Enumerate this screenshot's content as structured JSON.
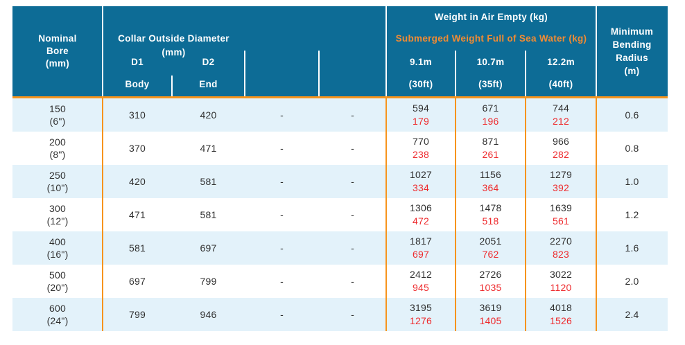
{
  "colors": {
    "header_bg": "#0d6c96",
    "accent_orange": "#f7941d",
    "orange_text": "#f18b33",
    "red_text": "#ee2b2e",
    "stripe": "#e3f2fa",
    "body_text": "#303030"
  },
  "chart_data": {
    "type": "table",
    "title": "",
    "header": {
      "nominal_bore": "Nominal\nBore\n(mm)",
      "collar_title": "Collar Outside Diameter\n(mm)",
      "d1": "D1",
      "d2": "D2",
      "d1_sub": "Body",
      "d2_sub": "End",
      "weight_air": "Weight in Air Empty (kg)",
      "weight_submerged": "Submerged Weight Full of Sea Water (kg)",
      "len1": "9.1m",
      "len1_sub": "(30ft)",
      "len2": "10.7m",
      "len2_sub": "(35ft)",
      "len3": "12.2m",
      "len3_sub": "(40ft)",
      "radius": "Minimum\nBending\nRadius\n(m)"
    },
    "rows": [
      {
        "bore": "150\n(6\")",
        "d1": "310",
        "d2": "420",
        "col4": "-",
        "col5": "-",
        "w1_air": "594",
        "w1_sub": "179",
        "w2_air": "671",
        "w2_sub": "196",
        "w3_air": "744",
        "w3_sub": "212",
        "radius": "0.6"
      },
      {
        "bore": "200\n(8\")",
        "d1": "370",
        "d2": "471",
        "col4": "-",
        "col5": "-",
        "w1_air": "770",
        "w1_sub": "238",
        "w2_air": "871",
        "w2_sub": "261",
        "w3_air": "966",
        "w3_sub": "282",
        "radius": "0.8"
      },
      {
        "bore": "250\n(10\")",
        "d1": "420",
        "d2": "581",
        "col4": "-",
        "col5": "-",
        "w1_air": "1027",
        "w1_sub": "334",
        "w2_air": "1156",
        "w2_sub": "364",
        "w3_air": "1279",
        "w3_sub": "392",
        "radius": "1.0"
      },
      {
        "bore": "300\n(12\")",
        "d1": "471",
        "d2": "581",
        "col4": "-",
        "col5": "-",
        "w1_air": "1306",
        "w1_sub": "472",
        "w2_air": "1478",
        "w2_sub": "518",
        "w3_air": "1639",
        "w3_sub": "561",
        "radius": "1.2"
      },
      {
        "bore": "400\n(16\")",
        "d1": "581",
        "d2": "697",
        "col4": "-",
        "col5": "-",
        "w1_air": "1817",
        "w1_sub": "697",
        "w2_air": "2051",
        "w2_sub": "762",
        "w3_air": "2270",
        "w3_sub": "823",
        "radius": "1.6"
      },
      {
        "bore": "500\n(20\")",
        "d1": "697",
        "d2": "799",
        "col4": "-",
        "col5": "-",
        "w1_air": "2412",
        "w1_sub": "945",
        "w2_air": "2726",
        "w2_sub": "1035",
        "w3_air": "3022",
        "w3_sub": "1120",
        "radius": "2.0"
      },
      {
        "bore": "600\n(24\")",
        "d1": "799",
        "d2": "946",
        "col4": "-",
        "col5": "-",
        "w1_air": "3195",
        "w1_sub": "1276",
        "w2_air": "3619",
        "w2_sub": "1405",
        "w3_air": "4018",
        "w3_sub": "1526",
        "radius": "2.4"
      }
    ]
  }
}
